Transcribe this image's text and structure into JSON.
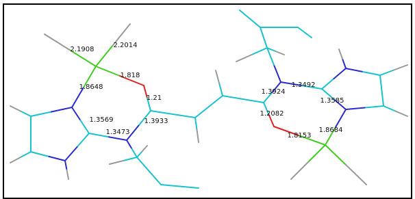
{
  "bond_labels": [
    "2.1908",
    "2.2014",
    "1.818",
    "1.8648",
    "1.21",
    "1.3569",
    "1.3933",
    "1.3473",
    "1.3492",
    "1.3924",
    "1.3585",
    "1.2082",
    "1.8684",
    "1.8153"
  ]
}
